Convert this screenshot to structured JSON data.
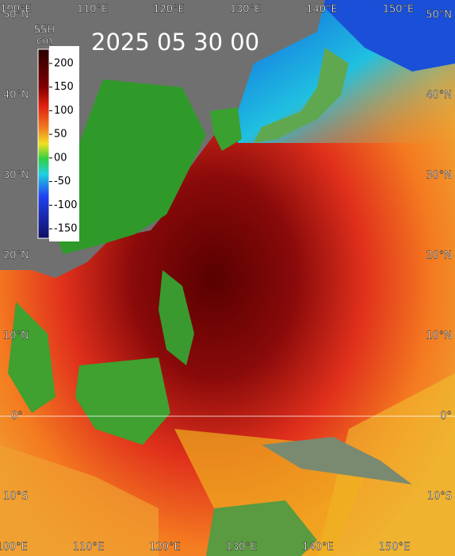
{
  "title": "2025 05 30 00",
  "colorbar": {
    "label": "SSH",
    "unit": "cm",
    "range": [
      -170,
      230
    ],
    "ticks": [
      200,
      150,
      100,
      50,
      {
        "value": 0,
        "label": "00"
      },
      -50,
      -100,
      -150
    ]
  },
  "map": {
    "lon_top": [
      {
        "value": 100,
        "label": "100°E"
      },
      {
        "value": 110,
        "label": "110°E"
      },
      {
        "value": 120,
        "label": "120°E"
      },
      {
        "value": 130,
        "label": "130°E"
      },
      {
        "value": 140,
        "label": "140°E"
      },
      {
        "value": 150,
        "label": "150°E"
      }
    ],
    "lon_bottom": [
      {
        "value": 100,
        "label": "100°E"
      },
      {
        "value": 110,
        "label": "110°E"
      },
      {
        "value": 120,
        "label": "120°E"
      },
      {
        "value": 130,
        "label": "130°E"
      },
      {
        "value": 140,
        "label": "140°E"
      },
      {
        "value": 150,
        "label": "150°E"
      }
    ],
    "lat_left": [
      {
        "value": 50,
        "label": "50°N"
      },
      {
        "value": 40,
        "label": "40°N"
      },
      {
        "value": 30,
        "label": "30°N"
      },
      {
        "value": 20,
        "label": "20°N"
      },
      {
        "value": 10,
        "label": "10°N"
      },
      {
        "value": 0,
        "label": "0°"
      },
      {
        "value": -10,
        "label": "10°S"
      }
    ],
    "lat_right": [
      {
        "value": 50,
        "label": "50°N"
      },
      {
        "value": 40,
        "label": "40°N"
      },
      {
        "value": 30,
        "label": "30°N"
      },
      {
        "value": 20,
        "label": "20°N"
      },
      {
        "value": 10,
        "label": "10°N"
      },
      {
        "value": 0,
        "label": "0°"
      },
      {
        "value": -10,
        "label": "10°S"
      }
    ]
  }
}
